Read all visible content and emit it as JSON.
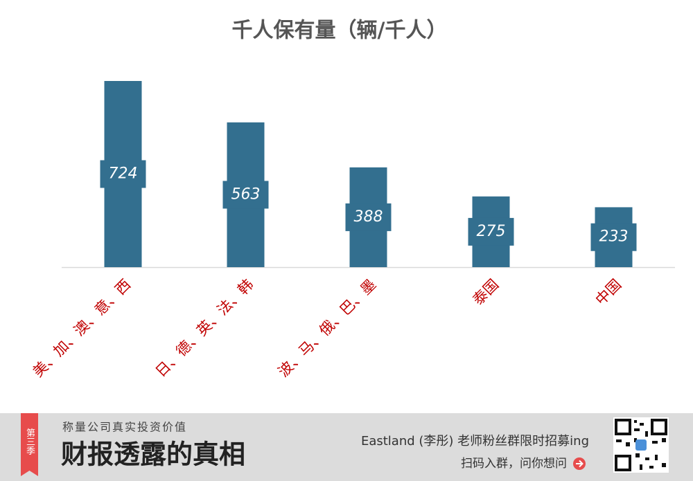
{
  "chart_data": {
    "type": "bar",
    "title": "千人保有量（辆/千人）",
    "categories": [
      "美、加、澳、意、西",
      "日、德、英、法、韩",
      "波、马、俄、巴、墨",
      "泰国",
      "中国"
    ],
    "values": [
      724,
      563,
      388,
      275,
      233
    ],
    "color": "#336f8f",
    "label_color": "#c00000",
    "grid": false
  },
  "footer": {
    "badge": "第三季",
    "slogan": "称量公司真实投资价值",
    "brand": "财报透露的真相",
    "recruit": "Eastland (李彤) 老师粉丝群限时招募ing",
    "cta": "扫码入群，问你想问"
  }
}
